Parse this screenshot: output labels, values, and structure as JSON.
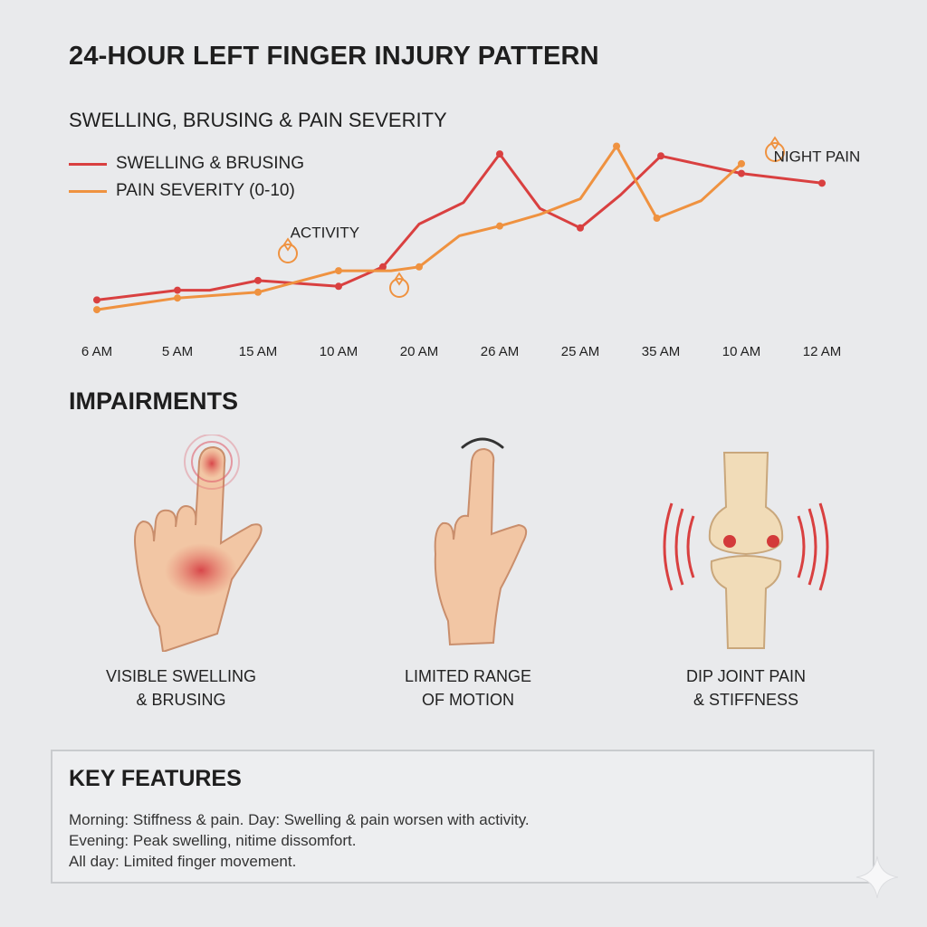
{
  "title": "24-HOUR LEFT FINGER INJURY PATTERN",
  "chart_data": {
    "type": "line",
    "title": "SWELLING, BRUSING & PAIN SEVERITY",
    "categories": [
      "6 AM",
      "5 AM",
      "15 AM",
      "10 AM",
      "20 AM",
      "26 AM",
      "25 AM",
      "35 AM",
      "10 AM",
      "12 AM"
    ],
    "x_tick_positions": [
      0,
      1,
      2,
      3,
      4,
      5,
      6,
      7,
      8,
      9
    ],
    "xlabel": "",
    "ylabel": "",
    "ylim": [
      0,
      10
    ],
    "grid": false,
    "legend_placement": "top-left",
    "series": [
      {
        "name": "SWELLING & BRUSING",
        "color": "#d94040",
        "x": [
          0,
          1,
          1.4,
          2,
          3,
          3.55,
          4,
          4.55,
          5,
          5.5,
          6,
          6.5,
          7,
          8,
          9
        ],
        "y": [
          1.1,
          1.6,
          1.6,
          2.1,
          1.8,
          2.8,
          5.0,
          6.1,
          8.6,
          5.8,
          4.8,
          6.5,
          8.5,
          7.6,
          7.1
        ],
        "markers": [
          0,
          1,
          3,
          4,
          5,
          8,
          10,
          12,
          13,
          14
        ]
      },
      {
        "name": "PAIN SEVERITY (0-10)",
        "color": "#ef9240",
        "x": [
          0,
          1,
          2,
          3,
          3.65,
          4,
          4.5,
          5,
          5.5,
          6,
          6.45,
          6.95,
          7.5,
          8
        ],
        "y": [
          0.6,
          1.2,
          1.5,
          2.6,
          2.6,
          2.8,
          4.4,
          4.9,
          5.5,
          6.3,
          9.0,
          5.3,
          6.2,
          8.1
        ],
        "markers": [
          0,
          1,
          2,
          3,
          5,
          7,
          10,
          11,
          13
        ]
      }
    ],
    "annotations": [
      {
        "text": "ACTIVITY",
        "x": 2.4,
        "y": 4.3
      },
      {
        "text": "NIGHT PAIN",
        "x": 8.4,
        "y": 8.2
      }
    ]
  },
  "impairments_heading": "IMPAIRMENTS",
  "impairments": [
    {
      "line1": "VISIBLE SWELLING",
      "line2": "& BRUSING",
      "icon": "bruised-hand-icon"
    },
    {
      "line1": "LIMITED RANGE",
      "line2": "OF MOTION",
      "icon": "pointing-hand-icon"
    },
    {
      "line1": "DIP JOINT PAIN",
      "line2": "& STIFFNESS",
      "icon": "joint-pain-icon"
    }
  ],
  "key_features": {
    "title": "KEY FEATURES",
    "lines": [
      "Morning: Stiffness & pain. Day: Swelling & pain worsen with activity.",
      "Evening: Peak swelling, nitime dissomfort.",
      "All day: Limited finger movement."
    ]
  }
}
